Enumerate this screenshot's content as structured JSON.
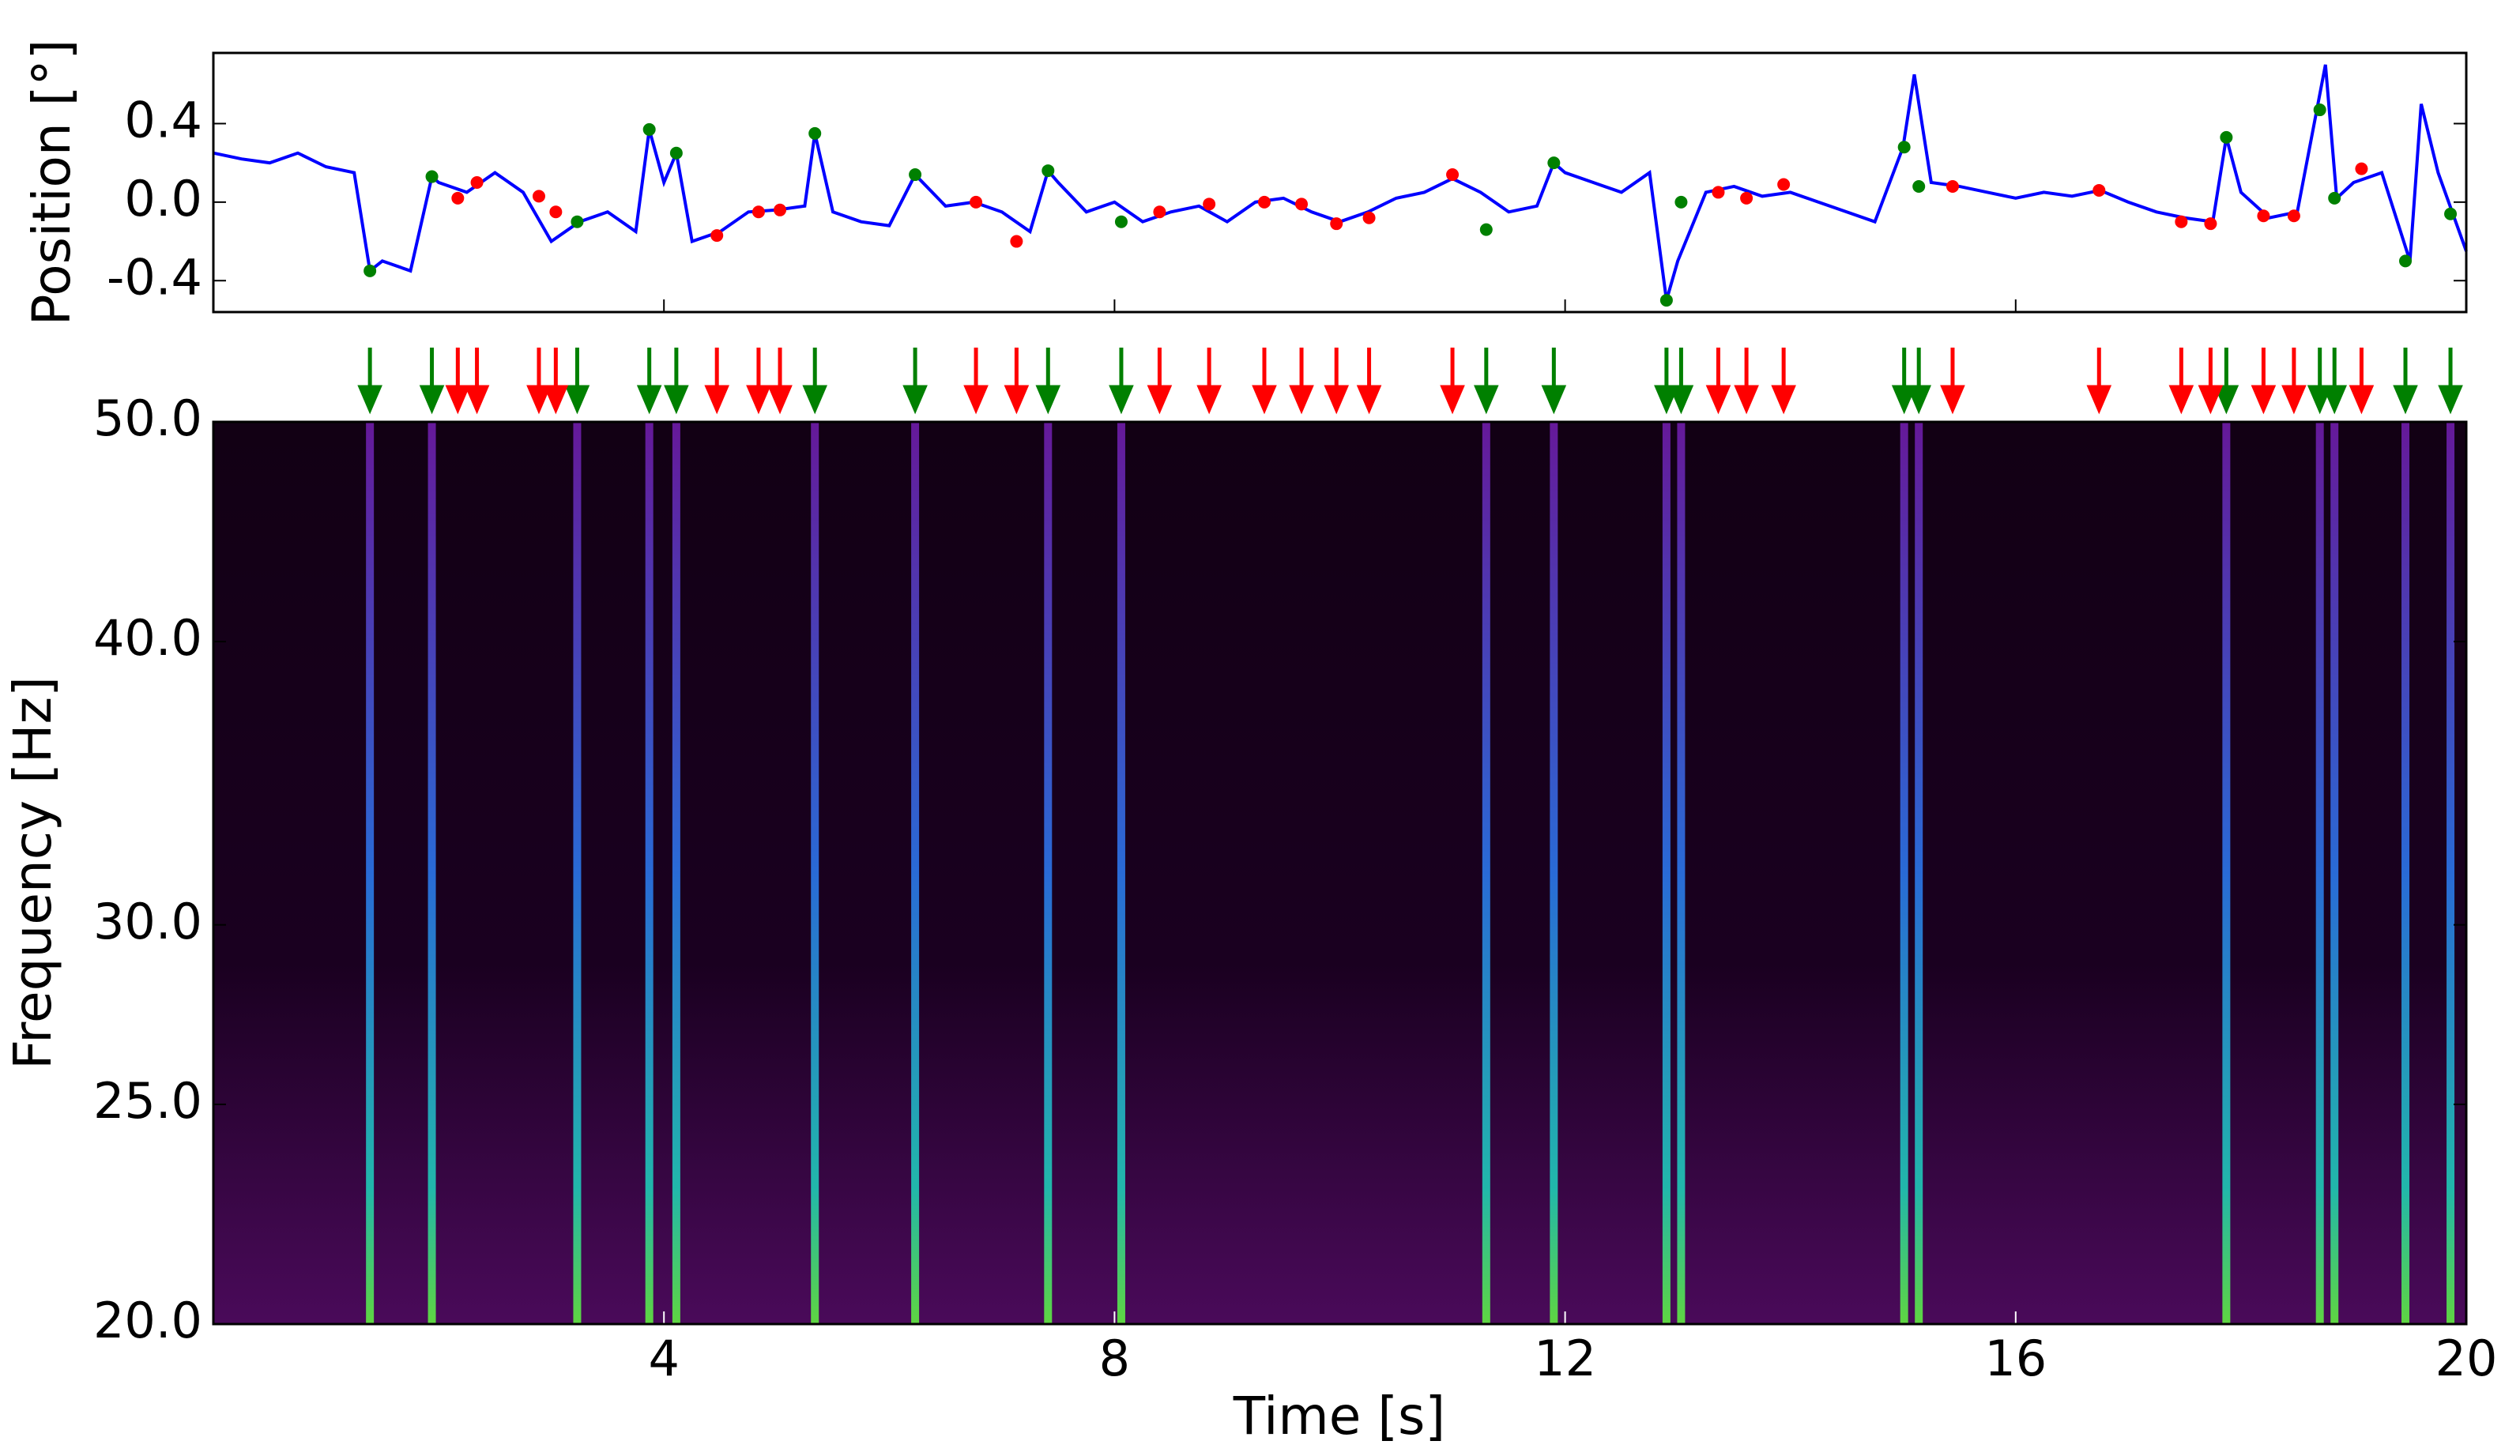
{
  "chart_data": [
    {
      "type": "line",
      "ylabel": "Position [°]",
      "color": "#0000ff",
      "x": [
        0,
        0.25,
        0.5,
        0.75,
        1,
        1.25,
        1.39,
        1.5,
        1.75,
        1.94,
        2,
        2.25,
        2.5,
        2.75,
        3,
        3.25,
        3.5,
        3.75,
        3.87,
        4,
        4.11,
        4.25,
        4.5,
        4.75,
        5,
        5.25,
        5.34,
        5.5,
        5.75,
        6,
        6.23,
        6.5,
        6.75,
        7,
        7.25,
        7.41,
        7.5,
        7.75,
        8,
        8.25,
        8.5,
        8.75,
        9,
        9.25,
        9.5,
        9.75,
        10,
        10.25,
        10.5,
        10.75,
        11,
        11.25,
        11.5,
        11.75,
        11.9,
        12,
        12.25,
        12.5,
        12.75,
        12.9,
        13,
        13.25,
        13.5,
        13.75,
        14,
        14.25,
        14.5,
        14.75,
        15,
        15.1,
        15.25,
        15.5,
        15.75,
        16,
        16.25,
        16.5,
        16.75,
        17,
        17.25,
        17.5,
        17.75,
        17.87,
        18,
        18.25,
        18.5,
        18.75,
        18.85,
        19,
        19.25,
        19.5,
        19.6,
        19.75,
        20
      ],
      "values": [
        0.25,
        0.22,
        0.2,
        0.25,
        0.18,
        0.15,
        -0.35,
        -0.3,
        -0.35,
        0.13,
        0.1,
        0.05,
        0.15,
        0.05,
        -0.2,
        -0.1,
        -0.05,
        -0.15,
        0.37,
        0.1,
        0.25,
        -0.2,
        -0.15,
        -0.05,
        -0.04,
        -0.02,
        0.35,
        -0.05,
        -0.1,
        -0.12,
        0.14,
        -0.02,
        0,
        -0.05,
        -0.15,
        0.16,
        0.1,
        -0.05,
        0,
        -0.1,
        -0.05,
        -0.02,
        -0.1,
        0,
        0.02,
        -0.05,
        -0.1,
        -0.05,
        0.02,
        0.05,
        0.12,
        0.05,
        -0.05,
        -0.02,
        0.2,
        0.15,
        0.1,
        0.05,
        0.15,
        -0.5,
        -0.3,
        0.05,
        0.08,
        0.03,
        0.05,
        0,
        -0.05,
        -0.1,
        0.28,
        0.65,
        0.1,
        0.08,
        0.05,
        0.02,
        0.05,
        0.03,
        0.06,
        0,
        -0.05,
        -0.08,
        -0.1,
        0.33,
        0.05,
        -0.08,
        -0.05,
        0.7,
        0.02,
        0.1,
        0.15,
        -0.3,
        0.5,
        0.15,
        -0.25
      ],
      "xlim": [
        0,
        20
      ],
      "xticks": [
        4,
        8,
        12,
        16,
        20
      ],
      "ylim": [
        -0.56,
        0.76
      ],
      "yticks": [
        -0.4,
        {
          "value": 0,
          "label": "0.0"
        },
        0.4
      ],
      "events": [
        {
          "color": "#008000",
          "x": [
            1.39,
            1.94,
            3.23,
            3.87,
            4.11,
            5.34,
            6.23,
            7.41,
            8.06,
            11.3,
            11.9,
            12.9,
            13.03,
            15.01,
            15.14,
            17.87,
            18.7,
            18.83,
            19.46,
            19.86
          ],
          "values": [
            -0.35,
            0.13,
            -0.1,
            0.37,
            0.25,
            0.35,
            0.14,
            0.16,
            -0.1,
            -0.14,
            0.2,
            -0.5,
            0,
            0.28,
            0.08,
            0.33,
            0.47,
            0.02,
            -0.3,
            -0.06
          ]
        },
        {
          "color": "#ff0000",
          "x": [
            2.17,
            2.34,
            2.89,
            3.04,
            4.47,
            4.84,
            5.03,
            6.77,
            7.13,
            8.4,
            8.84,
            9.33,
            9.66,
            9.97,
            10.26,
            11.0,
            13.36,
            13.61,
            13.94,
            15.44,
            16.74,
            17.47,
            17.73,
            18.2,
            18.47,
            19.07
          ],
          "values": [
            0.02,
            0.1,
            0.03,
            -0.05,
            -0.17,
            -0.05,
            -0.04,
            0,
            -0.2,
            -0.05,
            -0.01,
            0,
            -0.01,
            -0.11,
            -0.08,
            0.14,
            0.05,
            0.02,
            0.09,
            0.08,
            0.06,
            -0.1,
            -0.11,
            -0.07,
            -0.07,
            0.17
          ]
        }
      ]
    },
    {
      "type": "heatmap",
      "xlabel": "Time [s]",
      "ylabel": "Frequency [Hz]",
      "xlim": [
        0,
        20
      ],
      "xticks": [
        4,
        8,
        12,
        16,
        20
      ],
      "ylim": [
        20,
        50
      ],
      "yscale": "log",
      "yticks": [
        {
          "value": 20,
          "label": "20.0"
        },
        {
          "value": 25,
          "label": "25.0"
        },
        {
          "value": 30,
          "label": "30.0"
        },
        {
          "value": 40,
          "label": "40.0"
        },
        {
          "value": 50,
          "label": "50.0"
        }
      ]
    }
  ]
}
